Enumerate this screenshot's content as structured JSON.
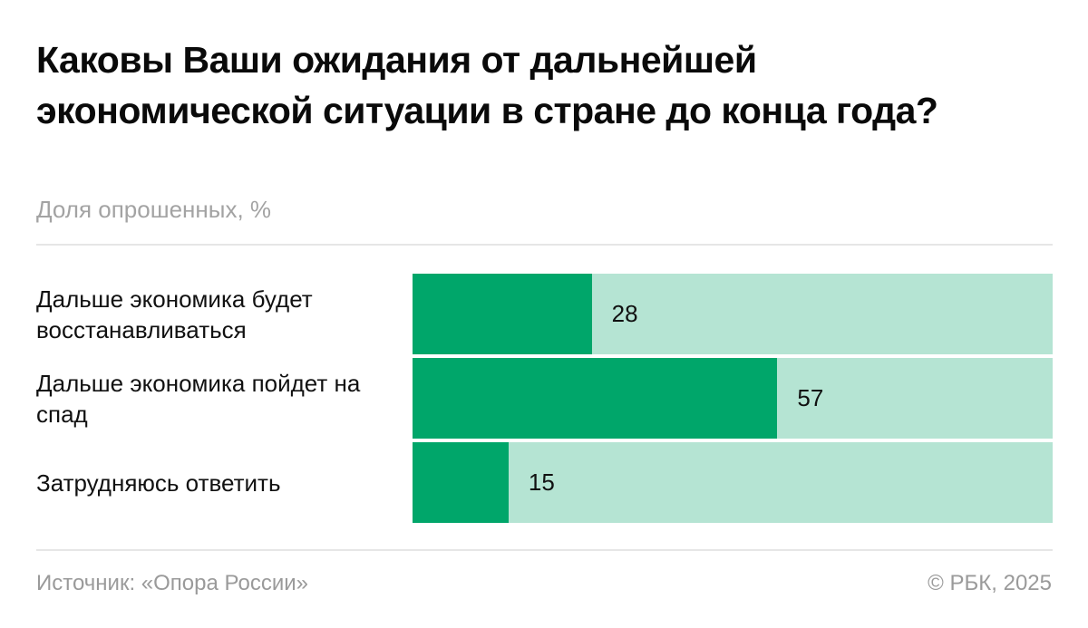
{
  "header": {
    "title": "Каковы Ваши ожидания от дальнейшей экономической ситуации в стране до конца года?",
    "subtitle": "Доля опрошенных, %"
  },
  "footer": {
    "source": "Источник: «Опора России»",
    "copyright": "© РБК, 2025"
  },
  "colors": {
    "bar_fill": "#00a66a",
    "bar_track": "#b5e4d3"
  },
  "chart_data": {
    "type": "bar",
    "orientation": "horizontal",
    "title": "Каковы Ваши ожидания от дальнейшей экономической ситуации в стране до конца года?",
    "subtitle": "Доля опрошенных, %",
    "categories": [
      "Дальше экономика будет восстанавливаться",
      "Дальше экономика пойдет на спад",
      "Затрудняюсь ответить"
    ],
    "values": [
      28,
      57,
      15
    ],
    "labels": [
      "28",
      "57",
      "15"
    ],
    "xlabel": "",
    "ylabel": "",
    "xlim": [
      0,
      100
    ],
    "grid": false,
    "legend": null,
    "source": "Источник: «Опора России»",
    "credit": "© РБК, 2025"
  }
}
